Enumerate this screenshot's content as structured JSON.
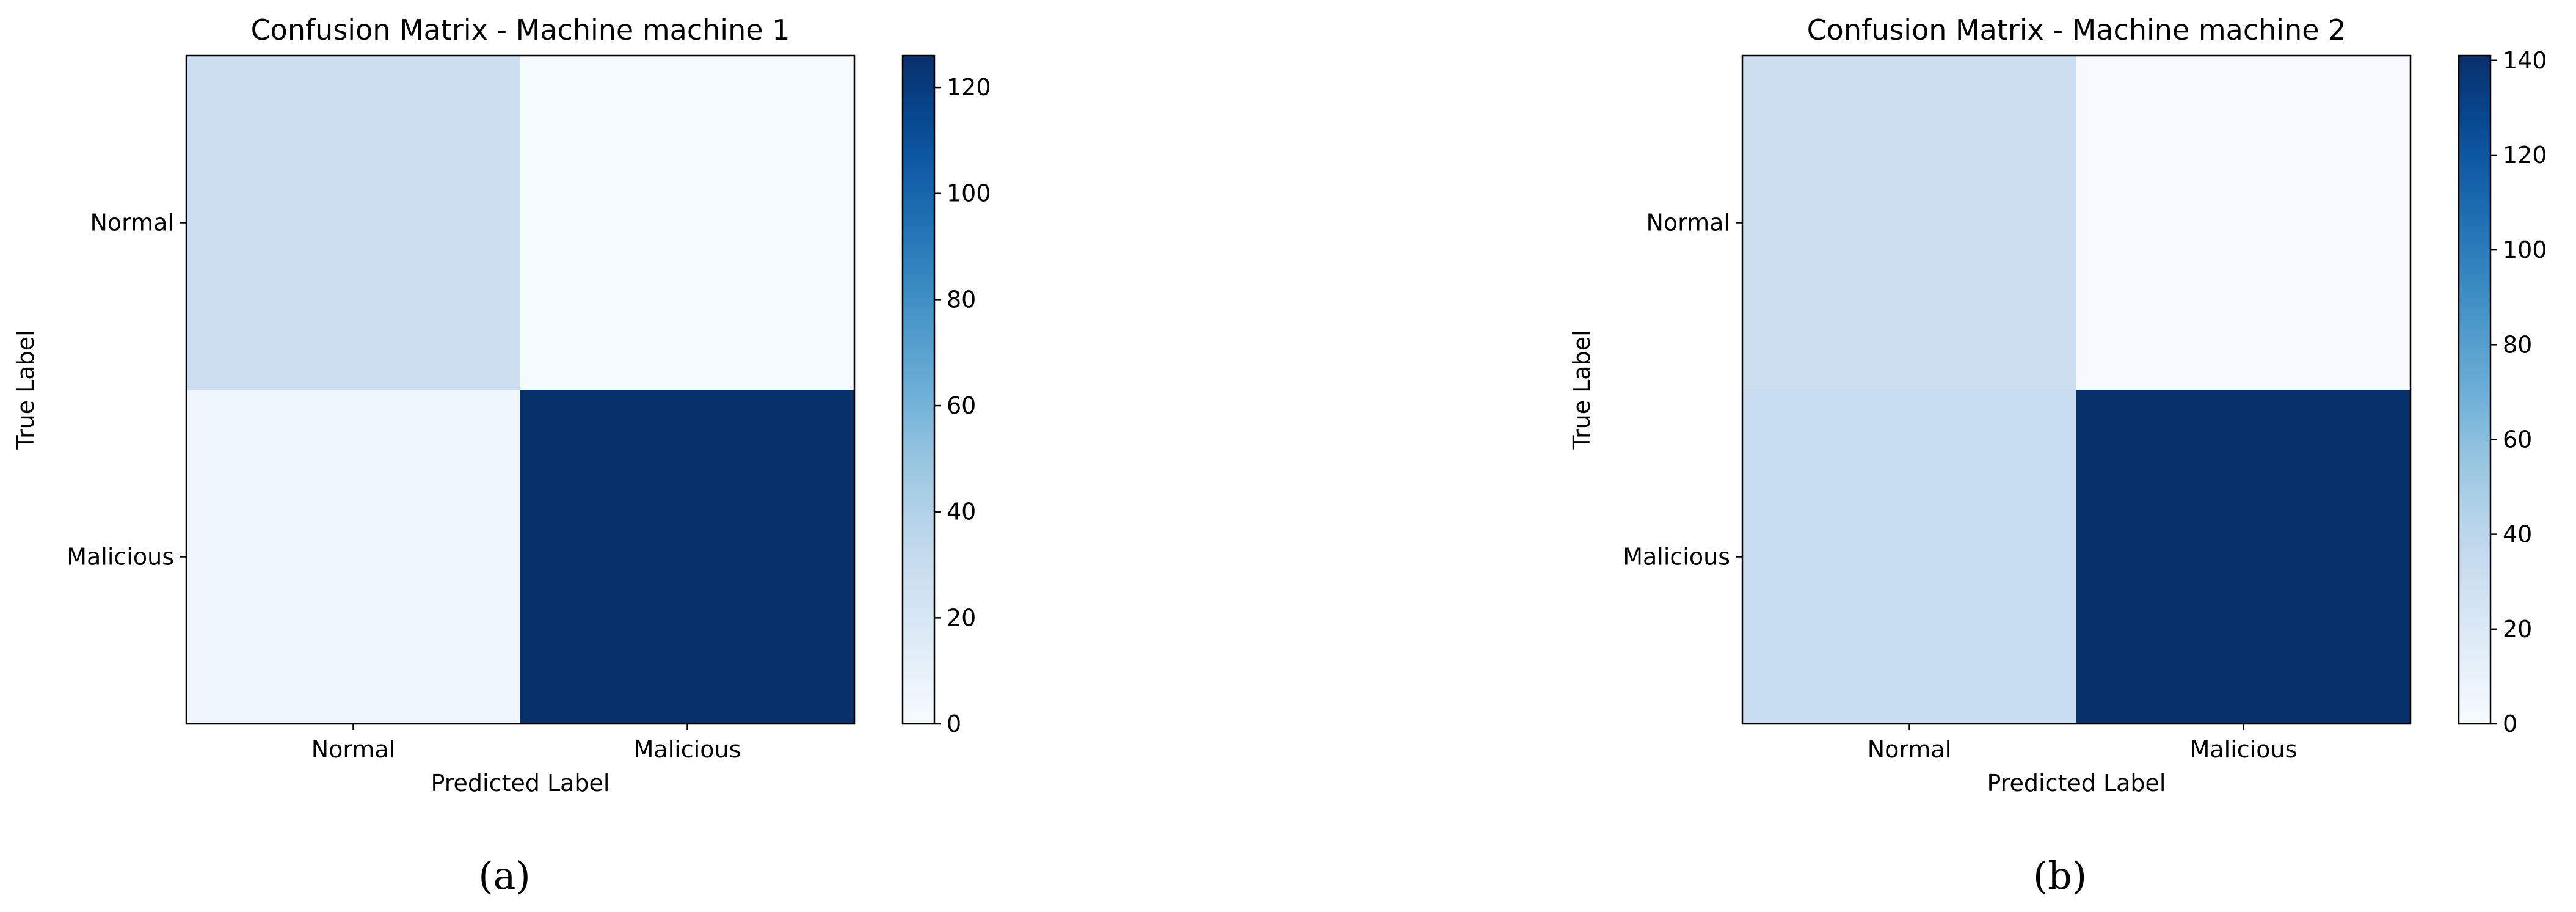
{
  "chart_data": [
    {
      "type": "heatmap",
      "title": "Confusion Matrix - Machine machine 1",
      "xlabel": "Predicted Label",
      "ylabel": "True Label",
      "x_categories": [
        "Normal",
        "Malicious"
      ],
      "y_categories": [
        "Normal",
        "Malicious"
      ],
      "values": [
        [
          28,
          1
        ],
        [
          5,
          126
        ]
      ],
      "colormap": "Blues",
      "colorbar": {
        "min": 0,
        "max": 126,
        "ticks": [
          0,
          20,
          40,
          60,
          80,
          100,
          120
        ]
      },
      "caption": "(a)"
    },
    {
      "type": "heatmap",
      "title": "Confusion Matrix - Machine machine 2",
      "xlabel": "Predicted Label",
      "ylabel": "True Label",
      "x_categories": [
        "Normal",
        "Malicious"
      ],
      "y_categories": [
        "Normal",
        "Malicious"
      ],
      "values": [
        [
          31,
          1
        ],
        [
          33,
          141
        ]
      ],
      "colormap": "Blues",
      "colorbar": {
        "min": 0,
        "max": 141,
        "ticks": [
          0,
          20,
          40,
          60,
          80,
          100,
          120,
          140
        ]
      },
      "caption": "(b)"
    }
  ]
}
